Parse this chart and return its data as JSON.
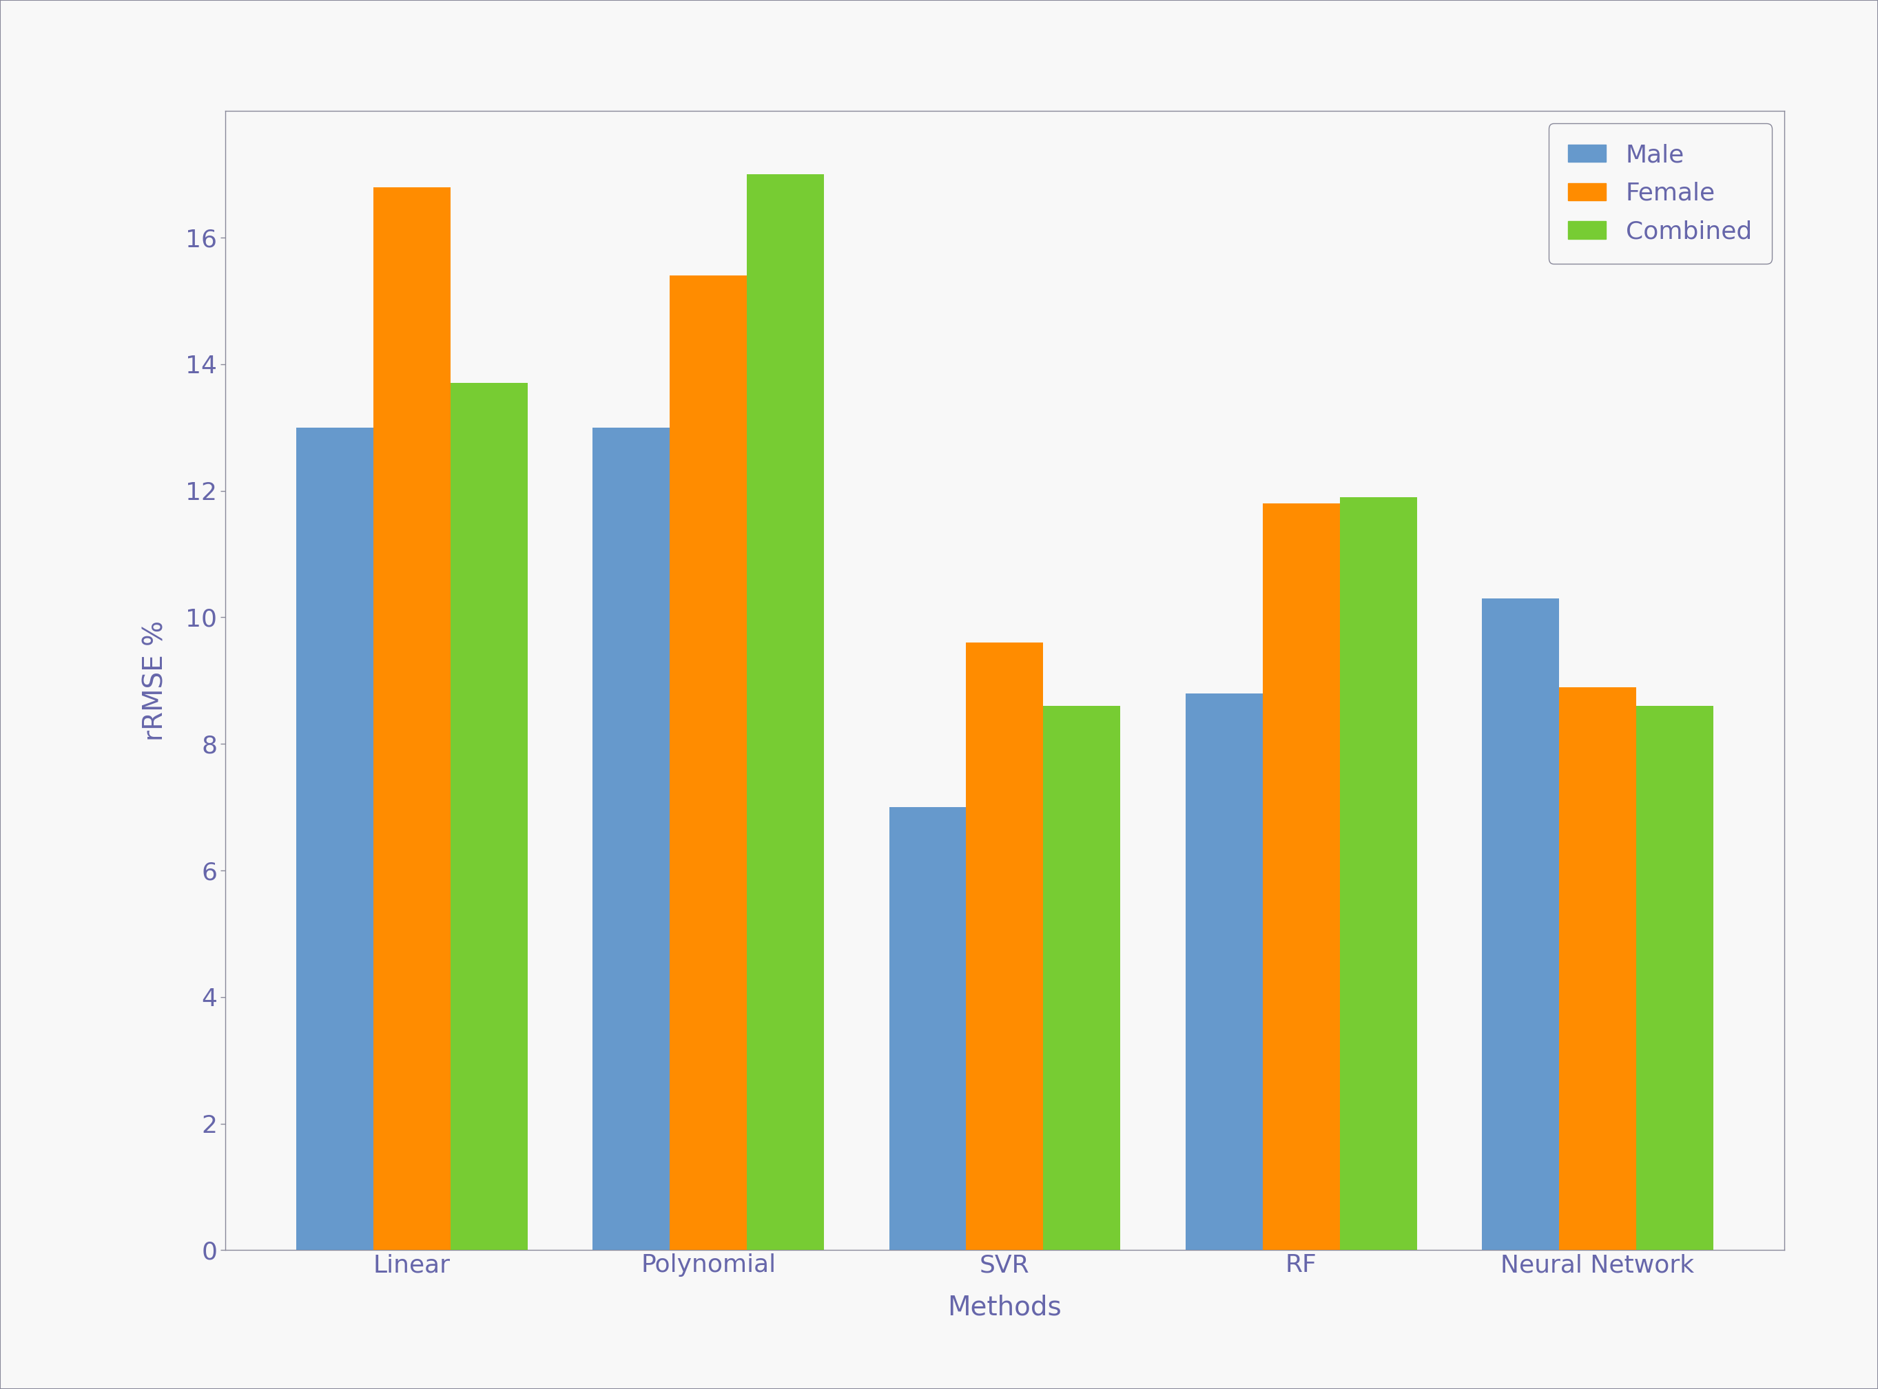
{
  "categories": [
    "Linear",
    "Polynomial",
    "SVR",
    "RF",
    "Neural Network"
  ],
  "male": [
    13.0,
    13.0,
    7.0,
    8.8,
    10.3
  ],
  "female": [
    16.8,
    15.4,
    9.6,
    11.8,
    8.9
  ],
  "combined": [
    13.7,
    17.0,
    8.6,
    11.9,
    8.6
  ],
  "bar_colors": {
    "male": "#6699cc",
    "female": "#ff8c00",
    "combined": "#77cc33"
  },
  "ylabel": "rRMSE %",
  "xlabel": "Methods",
  "ylim": [
    0,
    18
  ],
  "yticks": [
    0,
    2,
    4,
    6,
    8,
    10,
    12,
    14,
    16
  ],
  "legend_labels": [
    "Male",
    "Female",
    "Combined"
  ],
  "legend_colors": [
    "#6699cc",
    "#ff8c00",
    "#77cc33"
  ],
  "outer_background": "#e8e8e8",
  "inner_background": "#f8f8f8",
  "plot_background": "#f8f8f8",
  "bar_width": 0.26,
  "label_fontsize": 28,
  "tick_fontsize": 26,
  "legend_fontsize": 26,
  "text_color": "#6666aa",
  "spine_color": "#888899",
  "grid_color": "#cccccc"
}
